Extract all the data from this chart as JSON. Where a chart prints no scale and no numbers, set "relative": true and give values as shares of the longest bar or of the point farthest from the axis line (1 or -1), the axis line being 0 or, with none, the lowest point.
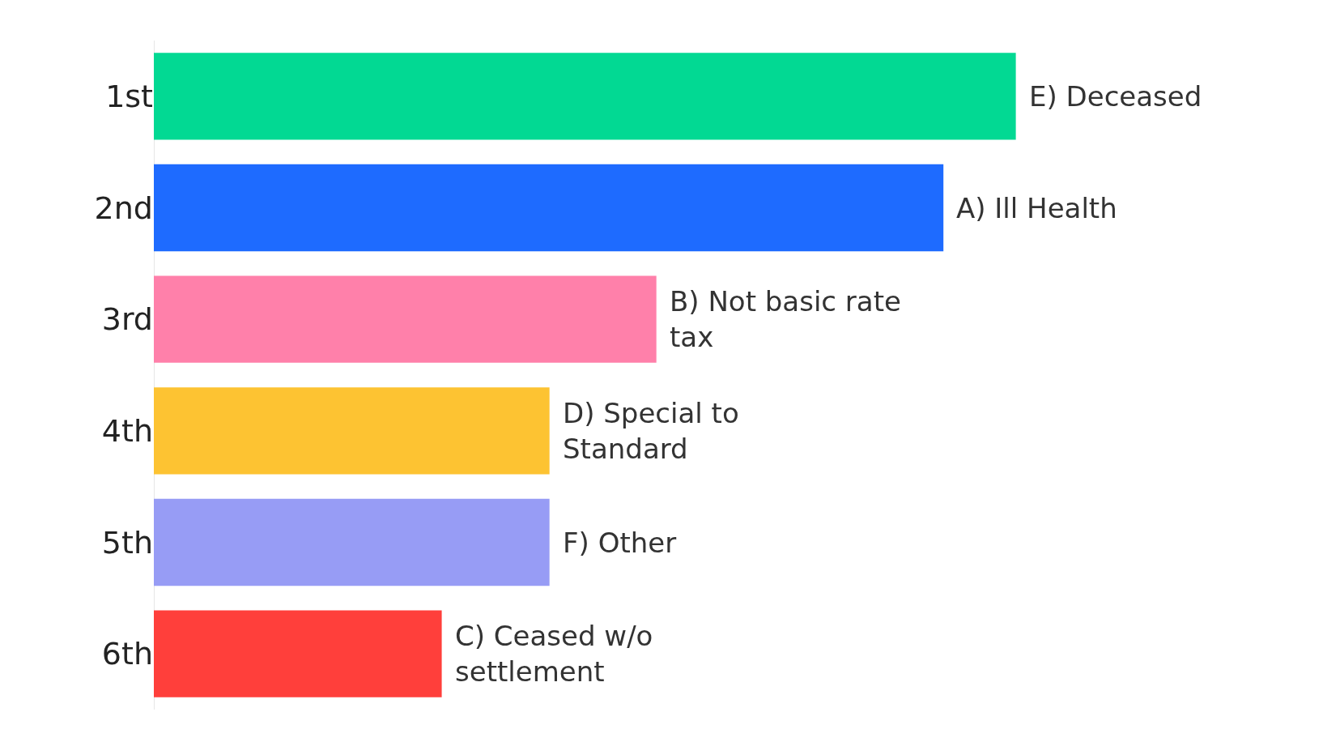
{
  "chart_data": {
    "type": "bar",
    "orientation": "horizontal",
    "relative": true,
    "categories": [
      "1st",
      "2nd",
      "3rd",
      "4th",
      "5th",
      "6th"
    ],
    "values": [
      1,
      0.916,
      0.583,
      0.459,
      0.459,
      0.334
    ],
    "colors": [
      "#02d993",
      "#1e6bff",
      "#ff80aa",
      "#fdc332",
      "#979cf5",
      "#ff3f3b"
    ],
    "annotations": [
      {
        "text": "E) Deceased",
        "x": 1,
        "y": "1st"
      },
      {
        "text": "A) Ill Health",
        "x": 0.916,
        "y": "2nd"
      },
      {
        "text": "B) Not basic rate tax",
        "x": 0.583,
        "y": "3rd"
      },
      {
        "text": "D) Special to Standard",
        "x": 0.459,
        "y": "4th"
      },
      {
        "text": "F) Other",
        "x": 0.459,
        "y": "5th"
      },
      {
        "text": "C) Ceased w/o settlement",
        "x": 0.334,
        "y": "6th"
      }
    ]
  }
}
